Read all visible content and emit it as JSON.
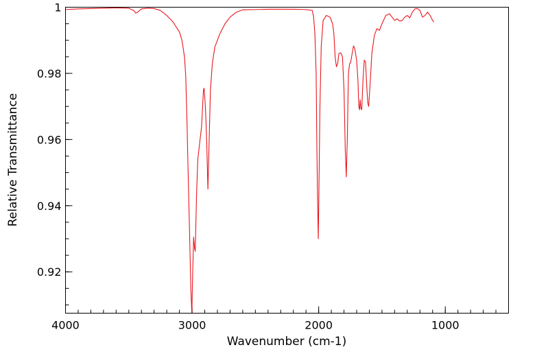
{
  "chart_data": {
    "type": "line",
    "title": "",
    "xlabel": "Wavenumber (cm-1)",
    "ylabel": "Relative Transmittance",
    "xlim": [
      4000,
      500
    ],
    "x_reversed": true,
    "ylim": [
      0.9075,
      1.0
    ],
    "grid": false,
    "legend": "none",
    "line_color": "#e8141b",
    "x_major_ticks": [
      4000,
      3000,
      2000,
      1000
    ],
    "x_minor_step": 100,
    "y_major_ticks": [
      0.92,
      0.94,
      0.96,
      0.98,
      1
    ],
    "y_minor_step": 0.005,
    "x_tick_labels": [
      "4000",
      "3000",
      "2000",
      "1000"
    ],
    "y_tick_labels": [
      "0.92",
      "0.94",
      "0.96",
      "0.98",
      "1"
    ],
    "series": [
      {
        "values": [
          [
            4000,
            0.9993
          ],
          [
            3900,
            0.9995
          ],
          [
            3800,
            0.9996
          ],
          [
            3700,
            0.9997
          ],
          [
            3600,
            0.9998
          ],
          [
            3500,
            0.9997
          ],
          [
            3460,
            0.999
          ],
          [
            3445,
            0.9982
          ],
          [
            3430,
            0.9985
          ],
          [
            3400,
            0.9995
          ],
          [
            3350,
            0.9997
          ],
          [
            3300,
            0.9996
          ],
          [
            3250,
            0.999
          ],
          [
            3200,
            0.9975
          ],
          [
            3150,
            0.9955
          ],
          [
            3100,
            0.9925
          ],
          [
            3080,
            0.99
          ],
          [
            3060,
            0.985
          ],
          [
            3050,
            0.979
          ],
          [
            3040,
            0.965
          ],
          [
            3030,
            0.948
          ],
          [
            3020,
            0.932
          ],
          [
            3010,
            0.915
          ],
          [
            3002,
            0.9075
          ],
          [
            2995,
            0.92
          ],
          [
            2988,
            0.9305
          ],
          [
            2980,
            0.927
          ],
          [
            2975,
            0.9262
          ],
          [
            2965,
            0.943
          ],
          [
            2955,
            0.954
          ],
          [
            2940,
            0.959
          ],
          [
            2925,
            0.964
          ],
          [
            2910,
            0.975
          ],
          [
            2905,
            0.9755
          ],
          [
            2895,
            0.97
          ],
          [
            2885,
            0.96
          ],
          [
            2875,
            0.945
          ],
          [
            2865,
            0.96
          ],
          [
            2855,
            0.975
          ],
          [
            2840,
            0.983
          ],
          [
            2820,
            0.988
          ],
          [
            2780,
            0.992
          ],
          [
            2740,
            0.995
          ],
          [
            2700,
            0.997
          ],
          [
            2650,
            0.9985
          ],
          [
            2600,
            0.9992
          ],
          [
            2500,
            0.9993
          ],
          [
            2400,
            0.9994
          ],
          [
            2300,
            0.9994
          ],
          [
            2200,
            0.9994
          ],
          [
            2100,
            0.9993
          ],
          [
            2050,
            0.999
          ],
          [
            2040,
            0.997
          ],
          [
            2030,
            0.992
          ],
          [
            2020,
            0.98
          ],
          [
            2015,
            0.96
          ],
          [
            2008,
            0.94
          ],
          [
            2003,
            0.93
          ],
          [
            1998,
            0.945
          ],
          [
            1990,
            0.97
          ],
          [
            1980,
            0.988
          ],
          [
            1965,
            0.996
          ],
          [
            1940,
            0.9975
          ],
          [
            1910,
            0.997
          ],
          [
            1890,
            0.995
          ],
          [
            1880,
            0.992
          ],
          [
            1870,
            0.985
          ],
          [
            1860,
            0.982
          ],
          [
            1850,
            0.983
          ],
          [
            1840,
            0.986
          ],
          [
            1825,
            0.9862
          ],
          [
            1812,
            0.985
          ],
          [
            1800,
            0.975
          ],
          [
            1790,
            0.957
          ],
          [
            1782,
            0.9487
          ],
          [
            1774,
            0.96
          ],
          [
            1765,
            0.98
          ],
          [
            1755,
            0.983
          ],
          [
            1748,
            0.9832
          ],
          [
            1740,
            0.985
          ],
          [
            1725,
            0.9883
          ],
          [
            1715,
            0.9875
          ],
          [
            1700,
            0.984
          ],
          [
            1690,
            0.978
          ],
          [
            1683,
            0.97
          ],
          [
            1677,
            0.969
          ],
          [
            1672,
            0.972
          ],
          [
            1667,
            0.9695
          ],
          [
            1660,
            0.969
          ],
          [
            1650,
            0.978
          ],
          [
            1640,
            0.984
          ],
          [
            1630,
            0.9835
          ],
          [
            1620,
            0.976
          ],
          [
            1612,
            0.971
          ],
          [
            1605,
            0.97
          ],
          [
            1595,
            0.976
          ],
          [
            1580,
            0.986
          ],
          [
            1560,
            0.9915
          ],
          [
            1540,
            0.9935
          ],
          [
            1520,
            0.993
          ],
          [
            1500,
            0.995
          ],
          [
            1470,
            0.9975
          ],
          [
            1440,
            0.998
          ],
          [
            1420,
            0.997
          ],
          [
            1400,
            0.996
          ],
          [
            1380,
            0.9965
          ],
          [
            1360,
            0.9958
          ],
          [
            1340,
            0.996
          ],
          [
            1320,
            0.997
          ],
          [
            1300,
            0.9975
          ],
          [
            1280,
            0.9968
          ],
          [
            1260,
            0.9985
          ],
          [
            1240,
            0.9995
          ],
          [
            1220,
            0.9996
          ],
          [
            1200,
            0.999
          ],
          [
            1180,
            0.997
          ],
          [
            1160,
            0.9975
          ],
          [
            1140,
            0.9985
          ],
          [
            1120,
            0.9975
          ],
          [
            1100,
            0.996
          ],
          [
            1090,
            0.9955
          ]
        ]
      }
    ]
  }
}
